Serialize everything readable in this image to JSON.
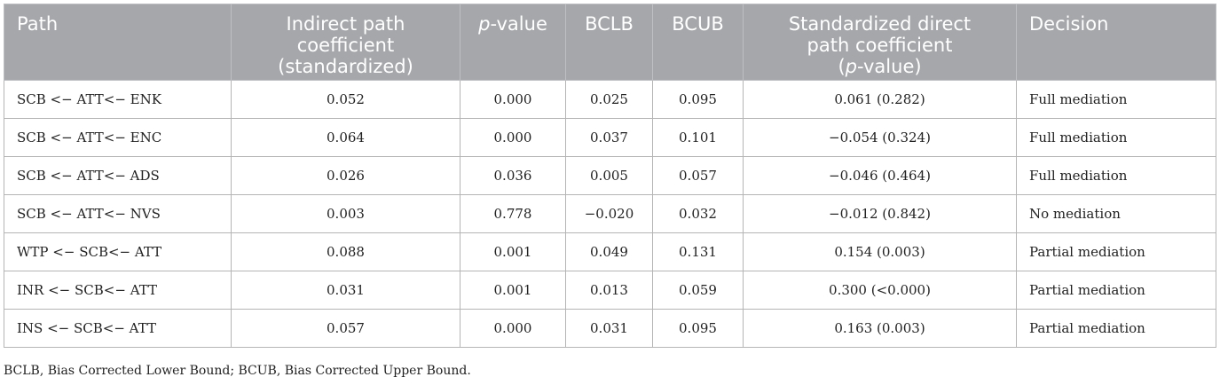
{
  "table": {
    "headers": {
      "path": "Path",
      "indirect": [
        "Indirect path",
        "coefficient",
        "(standardized)"
      ],
      "p_value_italic": "p",
      "p_value_rest": "-value",
      "bclb": "BCLB",
      "bcub": "BCUB",
      "direct_line1": "Standardized direct",
      "direct_line2": "path coefficient",
      "direct_line3_open": "(",
      "direct_line3_italic": "p",
      "direct_line3_rest": "-value)",
      "decision": "Decision"
    },
    "rows": [
      {
        "path": "SCB <− ATT<− ENK",
        "indirect": "0.052",
        "p": "0.000",
        "bclb": "0.025",
        "bcub": "0.095",
        "direct": "0.061 (0.282)",
        "decision": "Full mediation"
      },
      {
        "path": "SCB <− ATT<− ENC",
        "indirect": "0.064",
        "p": "0.000",
        "bclb": "0.037",
        "bcub": "0.101",
        "direct": "−0.054 (0.324)",
        "decision": "Full mediation"
      },
      {
        "path": "SCB <− ATT<− ADS",
        "indirect": "0.026",
        "p": "0.036",
        "bclb": "0.005",
        "bcub": "0.057",
        "direct": "−0.046 (0.464)",
        "decision": "Full mediation"
      },
      {
        "path": "SCB <− ATT<− NVS",
        "indirect": "0.003",
        "p": "0.778",
        "bclb": "−0.020",
        "bcub": "0.032",
        "direct": "−0.012 (0.842)",
        "decision": "No mediation"
      },
      {
        "path": "WTP <− SCB<− ATT",
        "indirect": "0.088",
        "p": "0.001",
        "bclb": "0.049",
        "bcub": "0.131",
        "direct": "0.154 (0.003)",
        "decision": "Partial mediation"
      },
      {
        "path": "INR <− SCB<− ATT",
        "indirect": "0.031",
        "p": "0.001",
        "bclb": "0.013",
        "bcub": "0.059",
        "direct": "0.300 (<0.000)",
        "decision": "Partial mediation"
      },
      {
        "path": "INS <− SCB<− ATT",
        "indirect": "0.057",
        "p": "0.000",
        "bclb": "0.031",
        "bcub": "0.095",
        "direct": "0.163 (0.003)",
        "decision": "Partial mediation"
      }
    ]
  },
  "footnote": "BCLB, Bias Corrected Lower Bound; BCUB, Bias Corrected Upper Bound."
}
